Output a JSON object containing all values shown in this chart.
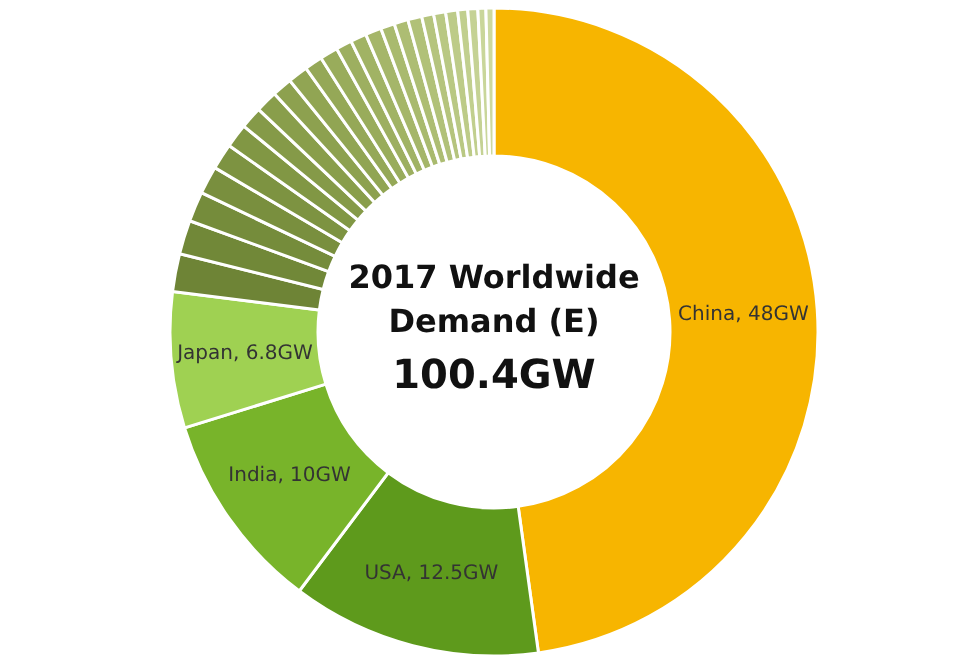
{
  "chart_data": {
    "type": "donut",
    "title": "2017 Worldwide Demand (E)",
    "subtitle": "100.4GW",
    "categories": [
      "China",
      "USA",
      "India",
      "Japan",
      null,
      null,
      null,
      null,
      null,
      null,
      null,
      null,
      null,
      null,
      null,
      null,
      null,
      null,
      null,
      null,
      null,
      null,
      null,
      null,
      null,
      null,
      null,
      null,
      null
    ],
    "values": [
      48,
      12.5,
      10,
      6.8,
      1.9,
      1.7,
      1.5,
      1.4,
      1.3,
      1.2,
      1.1,
      1.1,
      1.0,
      1.0,
      0.9,
      0.9,
      0.8,
      0.8,
      0.8,
      0.7,
      0.7,
      0.7,
      0.6,
      0.6,
      0.6,
      0.5,
      0.5,
      0.4,
      0.4
    ],
    "value_labels": [
      "48GW",
      "12.5GW",
      "10GW",
      "6.8GW",
      null,
      null,
      null,
      null,
      null,
      null,
      null,
      null,
      null,
      null,
      null,
      null,
      null,
      null,
      null,
      null,
      null,
      null,
      null,
      null,
      null,
      null,
      null,
      null,
      null
    ],
    "colors": [
      "#f7b500",
      "#5e9a1c",
      "#78b42a",
      "#9fd152",
      "#6e8436",
      "#718838",
      "#758c3b",
      "#798f3e",
      "#7d9341",
      "#819744",
      "#859a48",
      "#899e4b",
      "#8da14f",
      "#91a553",
      "#95a857",
      "#99ac5b",
      "#9daf60",
      "#a1b364",
      "#a5b669",
      "#a9ba6e",
      "#adbd73",
      "#b1c178",
      "#b5c47d",
      "#b9c883",
      "#bdcb88",
      "#c1cf8e",
      "#c5d294",
      "#c9d69a",
      "#cdd9a0"
    ]
  }
}
